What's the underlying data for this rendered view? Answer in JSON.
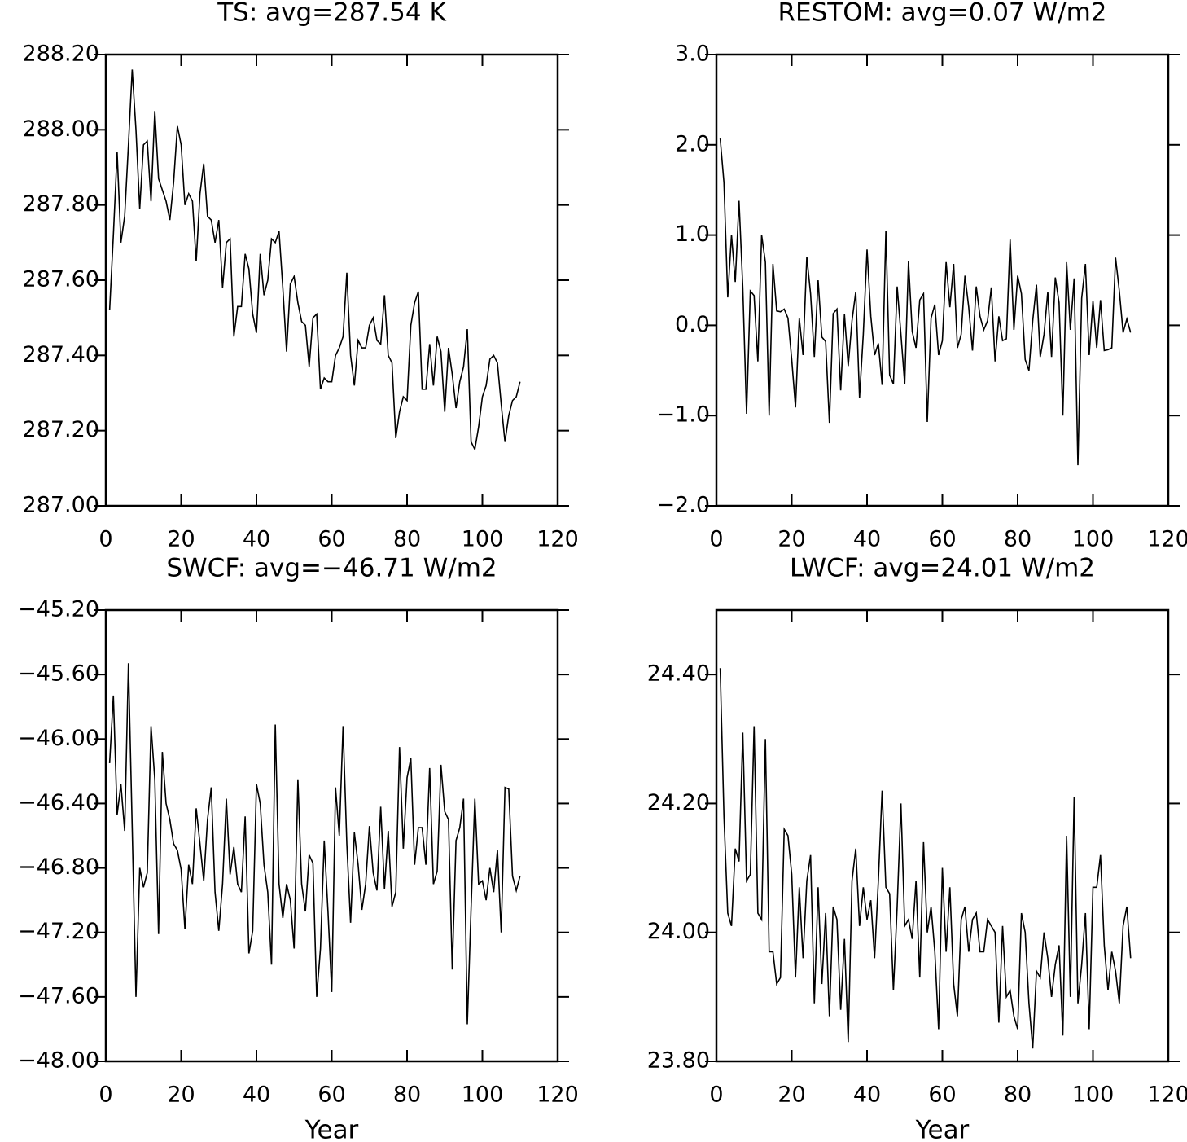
{
  "chart_data": [
    {
      "type": "line",
      "title": "TS: avg=287.54 K",
      "x": [
        1,
        2,
        3,
        4,
        5,
        6,
        7,
        8,
        9,
        10,
        11,
        12,
        13,
        14,
        15,
        16,
        17,
        18,
        19,
        20,
        21,
        22,
        23,
        24,
        25,
        26,
        27,
        28,
        29,
        30,
        31,
        32,
        33,
        34,
        35,
        36,
        37,
        38,
        39,
        40,
        41,
        42,
        43,
        44,
        45,
        46,
        47,
        48,
        49,
        50,
        51,
        52,
        53,
        54,
        55,
        56,
        57,
        58,
        59,
        60,
        61,
        62,
        63,
        64,
        65,
        66,
        67,
        68,
        69,
        70,
        71,
        72,
        73,
        74,
        75,
        76,
        77,
        78,
        79,
        80,
        81,
        82,
        83,
        84,
        85,
        86,
        87,
        88,
        89,
        90,
        91,
        92,
        93,
        94,
        95,
        96,
        97,
        98,
        99,
        100,
        101,
        102,
        103,
        104,
        105,
        106,
        107,
        108,
        109,
        110
      ],
      "series": [
        {
          "color": "#000000",
          "values": [
            287.52,
            287.72,
            287.94,
            287.7,
            287.77,
            287.96,
            288.16,
            288.0,
            287.79,
            287.96,
            287.97,
            287.81,
            288.05,
            287.87,
            287.84,
            287.81,
            287.76,
            287.86,
            288.01,
            287.96,
            287.8,
            287.83,
            287.81,
            287.65,
            287.83,
            287.91,
            287.77,
            287.76,
            287.7,
            287.76,
            287.58,
            287.7,
            287.71,
            287.45,
            287.53,
            287.53,
            287.67,
            287.63,
            287.51,
            287.46,
            287.67,
            287.56,
            287.6,
            287.71,
            287.7,
            287.73,
            287.58,
            287.41,
            287.59,
            287.61,
            287.54,
            287.49,
            287.48,
            287.37,
            287.5,
            287.51,
            287.31,
            287.34,
            287.33,
            287.33,
            287.4,
            287.42,
            287.45,
            287.62,
            287.4,
            287.32,
            287.44,
            287.42,
            287.42,
            287.48,
            287.5,
            287.44,
            287.43,
            287.56,
            287.4,
            287.38,
            287.18,
            287.25,
            287.29,
            287.28,
            287.48,
            287.54,
            287.57,
            287.31,
            287.31,
            287.43,
            287.32,
            287.45,
            287.41,
            287.25,
            287.42,
            287.35,
            287.26,
            287.33,
            287.37,
            287.47,
            287.17,
            287.15,
            287.21,
            287.29,
            287.32,
            287.39,
            287.4,
            287.38,
            287.27,
            287.17,
            287.24,
            287.28,
            287.29,
            287.33
          ]
        }
      ],
      "xlim": [
        0,
        120
      ],
      "xticks": [
        0,
        20,
        40,
        60,
        80,
        100,
        120
      ],
      "ylim": [
        287.0,
        288.2
      ],
      "yticks": [
        {
          "value": 287.0,
          "label": "287.00"
        },
        {
          "value": 287.2,
          "label": "287.20"
        },
        {
          "value": 287.4,
          "label": "287.40"
        },
        {
          "value": 287.6,
          "label": "287.60"
        },
        {
          "value": 287.8,
          "label": "287.80"
        },
        {
          "value": 288.0,
          "label": "288.00"
        },
        {
          "value": 288.2,
          "label": "288.20"
        }
      ]
    },
    {
      "type": "line",
      "title": "RESTOM: avg=0.07 W/m2",
      "x": [
        1,
        2,
        3,
        4,
        5,
        6,
        7,
        8,
        9,
        10,
        11,
        12,
        13,
        14,
        15,
        16,
        17,
        18,
        19,
        20,
        21,
        22,
        23,
        24,
        25,
        26,
        27,
        28,
        29,
        30,
        31,
        32,
        33,
        34,
        35,
        36,
        37,
        38,
        39,
        40,
        41,
        42,
        43,
        44,
        45,
        46,
        47,
        48,
        49,
        50,
        51,
        52,
        53,
        54,
        55,
        56,
        57,
        58,
        59,
        60,
        61,
        62,
        63,
        64,
        65,
        66,
        67,
        68,
        69,
        70,
        71,
        72,
        73,
        74,
        75,
        76,
        77,
        78,
        79,
        80,
        81,
        82,
        83,
        84,
        85,
        86,
        87,
        88,
        89,
        90,
        91,
        92,
        93,
        94,
        95,
        96,
        97,
        98,
        99,
        100,
        101,
        102,
        103,
        104,
        105,
        106,
        107,
        108,
        109,
        110
      ],
      "series": [
        {
          "color": "#000000",
          "values": [
            2.07,
            1.58,
            0.31,
            1.0,
            0.48,
            1.38,
            0.42,
            -0.98,
            0.38,
            0.33,
            -0.4,
            1.0,
            0.7,
            -1.0,
            0.68,
            0.16,
            0.15,
            0.18,
            0.08,
            -0.38,
            -0.91,
            0.08,
            -0.33,
            0.76,
            0.35,
            -0.35,
            0.5,
            -0.13,
            -0.18,
            -1.08,
            0.13,
            0.18,
            -0.72,
            0.12,
            -0.45,
            0.05,
            0.37,
            -0.8,
            -0.1,
            0.84,
            0.1,
            -0.33,
            -0.2,
            -0.66,
            1.05,
            -0.55,
            -0.65,
            0.43,
            -0.1,
            -0.65,
            0.71,
            -0.07,
            -0.25,
            0.28,
            0.35,
            -1.07,
            0.08,
            0.23,
            -0.33,
            -0.17,
            0.7,
            0.2,
            0.68,
            -0.25,
            -0.1,
            0.55,
            0.2,
            -0.28,
            0.43,
            0.1,
            -0.05,
            0.05,
            0.42,
            -0.4,
            0.1,
            -0.17,
            -0.15,
            0.95,
            -0.05,
            0.55,
            0.35,
            -0.38,
            -0.5,
            0.05,
            0.45,
            -0.35,
            -0.1,
            0.37,
            -0.35,
            0.53,
            0.25,
            -1.0,
            0.7,
            -0.05,
            0.52,
            -1.55,
            0.3,
            0.68,
            -0.33,
            0.27,
            -0.25,
            0.28,
            -0.28,
            -0.27,
            -0.25,
            0.75,
            0.38,
            -0.08,
            0.07,
            -0.08
          ]
        }
      ],
      "xlim": [
        0,
        120
      ],
      "xticks": [
        0,
        20,
        40,
        60,
        80,
        100,
        120
      ],
      "ylim": [
        -2.0,
        3.0
      ],
      "yticks": [
        {
          "value": -2.0,
          "label": "−2.0"
        },
        {
          "value": -1.0,
          "label": "−1.0"
        },
        {
          "value": 0.0,
          "label": "0.0"
        },
        {
          "value": 1.0,
          "label": "1.0"
        },
        {
          "value": 2.0,
          "label": "2.0"
        },
        {
          "value": 3.0,
          "label": "3.0"
        }
      ]
    },
    {
      "type": "line",
      "title": "SWCF: avg=−46.71 W/m2",
      "xlabel": "Year",
      "x": [
        1,
        2,
        3,
        4,
        5,
        6,
        7,
        8,
        9,
        10,
        11,
        12,
        13,
        14,
        15,
        16,
        17,
        18,
        19,
        20,
        21,
        22,
        23,
        24,
        25,
        26,
        27,
        28,
        29,
        30,
        31,
        32,
        33,
        34,
        35,
        36,
        37,
        38,
        39,
        40,
        41,
        42,
        43,
        44,
        45,
        46,
        47,
        48,
        49,
        50,
        51,
        52,
        53,
        54,
        55,
        56,
        57,
        58,
        59,
        60,
        61,
        62,
        63,
        64,
        65,
        66,
        67,
        68,
        69,
        70,
        71,
        72,
        73,
        74,
        75,
        76,
        77,
        78,
        79,
        80,
        81,
        82,
        83,
        84,
        85,
        86,
        87,
        88,
        89,
        90,
        91,
        92,
        93,
        94,
        95,
        96,
        97,
        98,
        99,
        100,
        101,
        102,
        103,
        104,
        105,
        106,
        107,
        108,
        109,
        110
      ],
      "series": [
        {
          "color": "#000000",
          "values": [
            -46.15,
            -45.73,
            -46.47,
            -46.28,
            -46.57,
            -45.53,
            -46.55,
            -47.6,
            -46.8,
            -46.92,
            -46.83,
            -45.92,
            -46.25,
            -47.21,
            -46.08,
            -46.4,
            -46.5,
            -46.65,
            -46.69,
            -46.81,
            -47.18,
            -46.78,
            -46.9,
            -46.43,
            -46.65,
            -46.88,
            -46.5,
            -46.3,
            -46.95,
            -47.19,
            -46.9,
            -46.37,
            -46.84,
            -46.67,
            -46.9,
            -46.95,
            -46.48,
            -47.33,
            -47.19,
            -46.28,
            -46.4,
            -46.78,
            -46.95,
            -47.4,
            -45.91,
            -46.9,
            -47.11,
            -46.9,
            -47.0,
            -47.3,
            -46.25,
            -46.9,
            -47.07,
            -46.72,
            -46.77,
            -47.6,
            -47.3,
            -46.63,
            -47.07,
            -47.57,
            -46.3,
            -46.6,
            -45.92,
            -46.65,
            -47.14,
            -46.58,
            -46.78,
            -47.06,
            -46.9,
            -46.54,
            -46.83,
            -46.94,
            -46.42,
            -46.93,
            -46.57,
            -47.04,
            -46.95,
            -46.05,
            -46.68,
            -46.24,
            -46.12,
            -46.78,
            -46.55,
            -46.55,
            -46.78,
            -46.18,
            -46.9,
            -46.82,
            -46.16,
            -46.45,
            -46.5,
            -47.43,
            -46.63,
            -46.55,
            -46.37,
            -47.77,
            -47.05,
            -46.37,
            -46.9,
            -46.88,
            -47.0,
            -46.8,
            -46.95,
            -46.69,
            -47.2,
            -46.3,
            -46.31,
            -46.85,
            -46.94,
            -46.85
          ]
        }
      ],
      "xlim": [
        0,
        120
      ],
      "xticks": [
        0,
        20,
        40,
        60,
        80,
        100,
        120
      ],
      "ylim": [
        -48.0,
        -45.2
      ],
      "yticks": [
        {
          "value": -48.0,
          "label": "−48.00"
        },
        {
          "value": -47.6,
          "label": "−47.60"
        },
        {
          "value": -47.2,
          "label": "−47.20"
        },
        {
          "value": -46.8,
          "label": "−46.80"
        },
        {
          "value": -46.4,
          "label": "−46.40"
        },
        {
          "value": -46.0,
          "label": "−46.00"
        },
        {
          "value": -45.6,
          "label": "−45.60"
        },
        {
          "value": -45.2,
          "label": "−45.20"
        }
      ]
    },
    {
      "type": "line",
      "title": "LWCF: avg=24.01 W/m2",
      "xlabel": "Year",
      "x": [
        1,
        2,
        3,
        4,
        5,
        6,
        7,
        8,
        9,
        10,
        11,
        12,
        13,
        14,
        15,
        16,
        17,
        18,
        19,
        20,
        21,
        22,
        23,
        24,
        25,
        26,
        27,
        28,
        29,
        30,
        31,
        32,
        33,
        34,
        35,
        36,
        37,
        38,
        39,
        40,
        41,
        42,
        43,
        44,
        45,
        46,
        47,
        48,
        49,
        50,
        51,
        52,
        53,
        54,
        55,
        56,
        57,
        58,
        59,
        60,
        61,
        62,
        63,
        64,
        65,
        66,
        67,
        68,
        69,
        70,
        71,
        72,
        73,
        74,
        75,
        76,
        77,
        78,
        79,
        80,
        81,
        82,
        83,
        84,
        85,
        86,
        87,
        88,
        89,
        90,
        91,
        92,
        93,
        94,
        95,
        96,
        97,
        98,
        99,
        100,
        101,
        102,
        103,
        104,
        105,
        106,
        107,
        108,
        109,
        110
      ],
      "series": [
        {
          "color": "#000000",
          "values": [
            24.41,
            24.18,
            24.03,
            24.01,
            24.13,
            24.11,
            24.31,
            24.08,
            24.09,
            24.32,
            24.03,
            24.02,
            24.3,
            23.97,
            23.97,
            23.92,
            23.93,
            24.16,
            24.15,
            24.09,
            23.93,
            24.07,
            23.96,
            24.08,
            24.12,
            23.89,
            24.07,
            23.92,
            24.03,
            23.87,
            24.04,
            24.02,
            23.88,
            23.99,
            23.83,
            24.08,
            24.13,
            24.01,
            24.07,
            24.02,
            24.05,
            23.96,
            24.08,
            24.22,
            24.07,
            24.06,
            23.91,
            24.04,
            24.2,
            24.01,
            24.02,
            23.99,
            24.08,
            23.93,
            24.14,
            24.0,
            24.04,
            23.97,
            23.85,
            24.1,
            23.97,
            24.07,
            23.92,
            23.87,
            24.02,
            24.04,
            23.97,
            24.02,
            24.03,
            23.97,
            23.97,
            24.02,
            24.01,
            24.0,
            23.86,
            24.01,
            23.9,
            23.91,
            23.87,
            23.85,
            24.03,
            24.0,
            23.89,
            23.82,
            23.94,
            23.93,
            24.0,
            23.96,
            23.9,
            23.95,
            23.98,
            23.84,
            24.15,
            23.9,
            24.21,
            23.89,
            23.95,
            24.03,
            23.85,
            24.07,
            24.07,
            24.12,
            23.98,
            23.91,
            23.97,
            23.94,
            23.89,
            24.01,
            24.04,
            23.96
          ]
        }
      ],
      "xlim": [
        0,
        120
      ],
      "xticks": [
        0,
        20,
        40,
        60,
        80,
        100,
        120
      ],
      "ylim": [
        23.8,
        24.5
      ],
      "yticks": [
        {
          "value": 23.8,
          "label": "23.80"
        },
        {
          "value": 24.0,
          "label": "24.00"
        },
        {
          "value": 24.2,
          "label": "24.20"
        },
        {
          "value": 24.4,
          "label": "24.40"
        }
      ]
    }
  ]
}
